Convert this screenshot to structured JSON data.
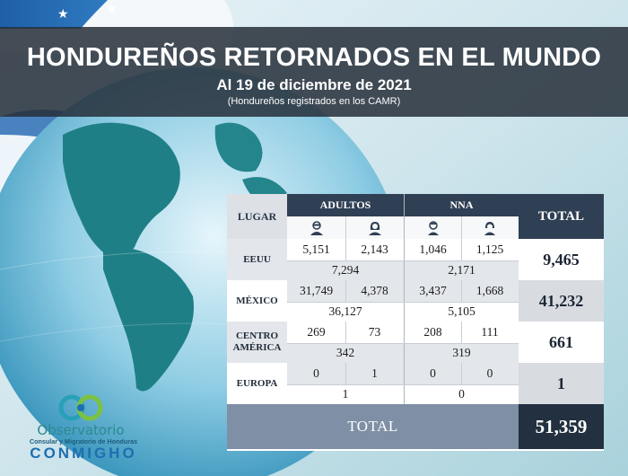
{
  "header": {
    "title": "HONDUREÑOS RETORNADOS EN EL MUNDO",
    "date": "Al 19 de diciembre de 2021",
    "subtitle": "(Hondureños registrados en los CAMR)"
  },
  "table": {
    "col_lugar": "LUGAR",
    "col_adultos": "ADULTOS",
    "col_nna": "NNA",
    "col_total": "TOTAL",
    "icons": [
      "male-adult-icon",
      "female-adult-icon",
      "boy-icon",
      "girl-icon"
    ],
    "rows": [
      {
        "lugar": "EEUU",
        "adult_male": "5,151",
        "adult_female": "2,143",
        "nna_male": "1,046",
        "nna_female": "1,125",
        "adultos_total": "7,294",
        "nna_total": "2,171",
        "total": "9,465"
      },
      {
        "lugar": "MÉXICO",
        "adult_male": "31,749",
        "adult_female": "4,378",
        "nna_male": "3,437",
        "nna_female": "1,668",
        "adultos_total": "36,127",
        "nna_total": "5,105",
        "total": "41,232"
      },
      {
        "lugar": "CENTRO AMÉRICA",
        "adult_male": "269",
        "adult_female": "73",
        "nna_male": "208",
        "nna_female": "111",
        "adultos_total": "342",
        "nna_total": "319",
        "total": "661"
      },
      {
        "lugar": "EUROPA",
        "adult_male": "0",
        "adult_female": "1",
        "nna_male": "0",
        "nna_female": "0",
        "adultos_total": "1",
        "nna_total": "0",
        "total": "1"
      }
    ],
    "grand_total_label": "TOTAL",
    "grand_total_value": "51,359"
  },
  "logo": {
    "line1": "Observatorio",
    "line2": "Consular y Migratorio de Honduras",
    "line3": "CONMIGHO"
  },
  "colors": {
    "header_dark": "#2f3f54",
    "banner": "#26303a",
    "row_shade": "#e3e6ea",
    "grand_label": "#7e8fa6",
    "grand_value": "#22303f"
  }
}
